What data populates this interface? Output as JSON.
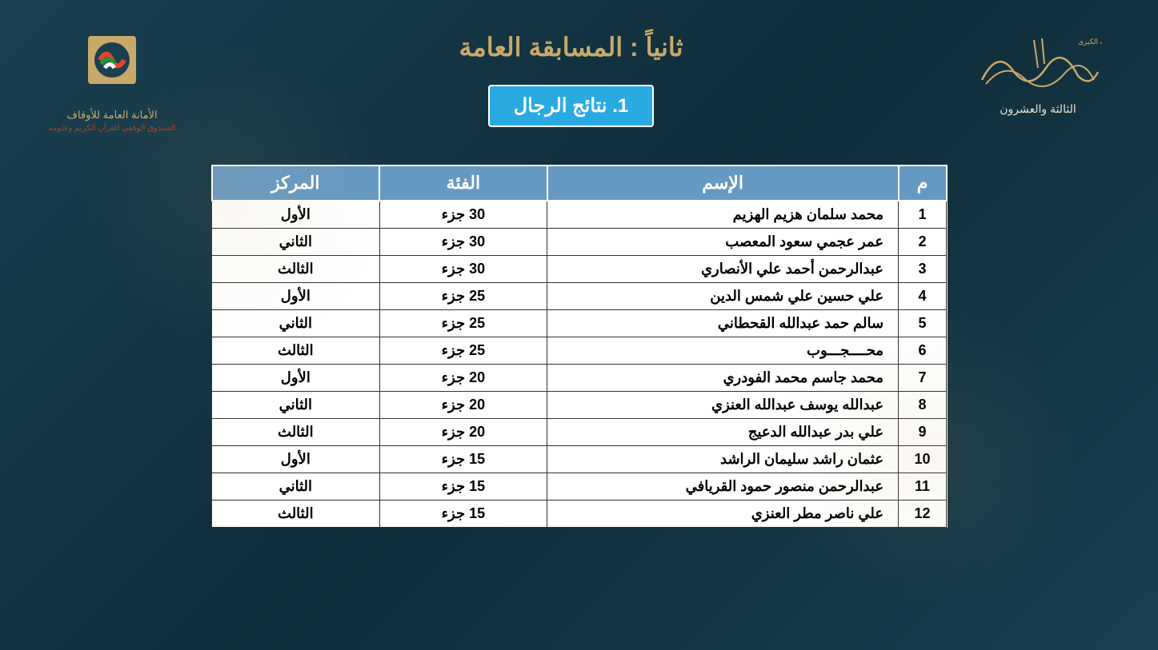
{
  "header": {
    "rightLogo": {
      "topText": "مسابقة الكويت الكبرى",
      "edition": "الثالثة والعشرون"
    },
    "leftLogo": {
      "org": "الأمانة العامة للأوقاف",
      "sub": "الصندوق الوقفي للقرآن الكريم وعلومه"
    },
    "mainTitle": "ثانياً : المسابقة العامة",
    "subTitle": "1. نتائج الرجال"
  },
  "table": {
    "columns": [
      "م",
      "الإسم",
      "الفئة",
      "المركز"
    ],
    "rows": [
      {
        "m": "1",
        "name": "محمد سلمان هزيم الهزيم",
        "cat": "30 جزء",
        "rank": "الأول"
      },
      {
        "m": "2",
        "name": "عمر عجمي سعود المعصب",
        "cat": "30 جزء",
        "rank": "الثاني"
      },
      {
        "m": "3",
        "name": "عبدالرحمن أحمد علي الأنصاري",
        "cat": "30 جزء",
        "rank": "الثالث"
      },
      {
        "m": "4",
        "name": "علي حسين علي شمس الدين",
        "cat": "25 جزء",
        "rank": "الأول"
      },
      {
        "m": "5",
        "name": "سالم حمد عبدالله القحطاني",
        "cat": "25 جزء",
        "rank": "الثاني"
      },
      {
        "m": "6",
        "name": "محــــجـــوب",
        "cat": "25 جزء",
        "rank": "الثالث"
      },
      {
        "m": "7",
        "name": "محمد جاسم محمد الفودري",
        "cat": "20 جزء",
        "rank": "الأول"
      },
      {
        "m": "8",
        "name": "عبدالله يوسف عبدالله العنزي",
        "cat": "20 جزء",
        "rank": "الثاني"
      },
      {
        "m": "9",
        "name": "علي بدر عبدالله الدعيج",
        "cat": "20 جزء",
        "rank": "الثالث"
      },
      {
        "m": "10",
        "name": "عثمان راشد سليمان الراشد",
        "cat": "15 جزء",
        "rank": "الأول"
      },
      {
        "m": "11",
        "name": "عبدالرحمن منصور حمود القريافي",
        "cat": "15 جزء",
        "rank": "الثاني"
      },
      {
        "m": "12",
        "name": "علي ناصر مطر العنزي",
        "cat": "15 جزء",
        "rank": "الثالث"
      }
    ]
  },
  "colors": {
    "background": "#1a4050",
    "gold": "#c9a969",
    "headerBlue": "#6699c2",
    "badgeBlue": "#29abe2",
    "white": "#ffffff",
    "text": "#000000"
  }
}
